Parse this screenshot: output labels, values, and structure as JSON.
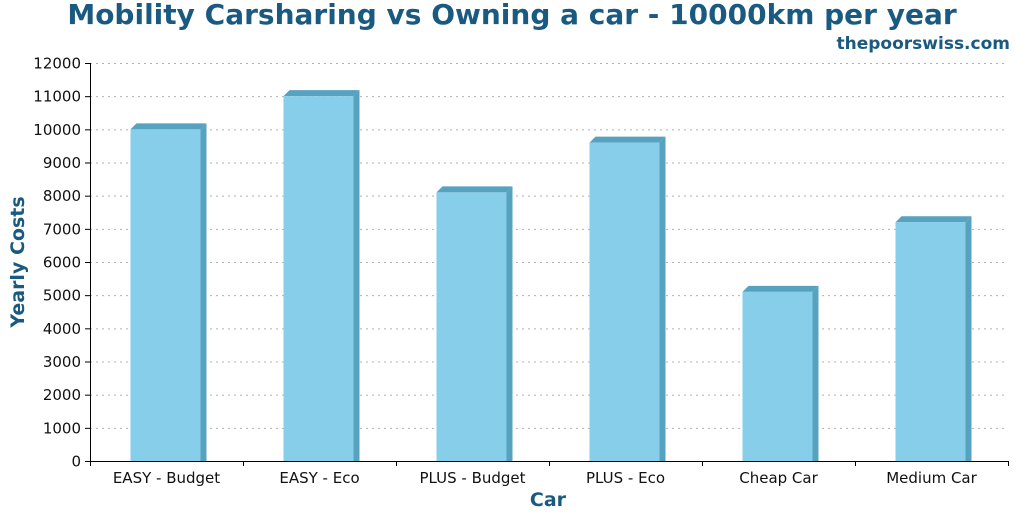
{
  "title": "Mobility Carsharing vs Owning a car - 10000km per year",
  "watermark": "thepoorswiss.com",
  "chart_data": {
    "type": "bar",
    "categories": [
      "EASY - Budget",
      "EASY - Eco",
      "PLUS - Budget",
      "PLUS - Eco",
      "Cheap Car",
      "Medium Car"
    ],
    "values": [
      10000,
      11000,
      8100,
      9600,
      5100,
      7200
    ],
    "title": "Mobility Carsharing vs Owning a car - 10000km per year",
    "xlabel": "Car",
    "ylabel": "Yearly Costs",
    "ylim": [
      0,
      12000
    ],
    "yticks": [
      0,
      1000,
      2000,
      3000,
      4000,
      5000,
      6000,
      7000,
      8000,
      9000,
      10000,
      11000,
      12000
    ],
    "grid": "horizontal dotted",
    "legend": "none",
    "colors": {
      "bar_face": "#87ceeb",
      "bar_side": "#57a2bf",
      "title": "#1b5a80",
      "grid": "#b0b0b0",
      "axis": "#000000"
    }
  }
}
